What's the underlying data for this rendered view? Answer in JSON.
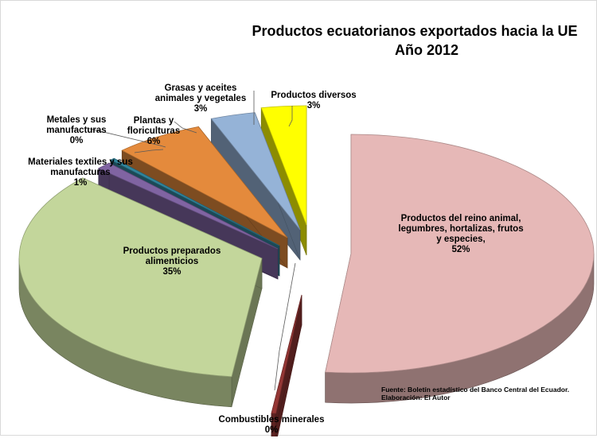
{
  "chart_data": {
    "type": "pie",
    "title": "Productos ecuatorianos exportados hacia la UE",
    "subtitle": "Año 2012",
    "slices": [
      {
        "label": "Productos del reino animal,  legumbres, hortalizas, frutos y especies,",
        "value": 52,
        "pct_label": "52%",
        "color": "#e6b8b7"
      },
      {
        "label": "Combustibles minerales",
        "value": 0.3,
        "pct_label": "0%",
        "color": "#953735"
      },
      {
        "label": "Productos preparados alimenticios",
        "value": 35,
        "pct_label": "35%",
        "color": "#c3d69b"
      },
      {
        "label": "Materiales textiles y sus manufacturas",
        "value": 1,
        "pct_label": "1%",
        "color": "#8064a2"
      },
      {
        "label": "Metales y sus manufacturas",
        "value": 0.3,
        "pct_label": "0%",
        "color": "#31859c"
      },
      {
        "label": "Plantas y floriculturas",
        "value": 6,
        "pct_label": "6%",
        "color": "#e48a3c"
      },
      {
        "label": "Grasas y aceites animales y vegetales",
        "value": 3,
        "pct_label": "3%",
        "color": "#95b3d7"
      },
      {
        "label": "Productos diversos",
        "value": 3,
        "pct_label": "3%",
        "color": "#ffff00"
      }
    ],
    "legend": "none",
    "style": "3D exploded pie"
  },
  "source_note": {
    "line1": "Fuente: Boletín estadístico del Banco Central del Ecuador.",
    "line2": "Elaboración: El Autor"
  }
}
